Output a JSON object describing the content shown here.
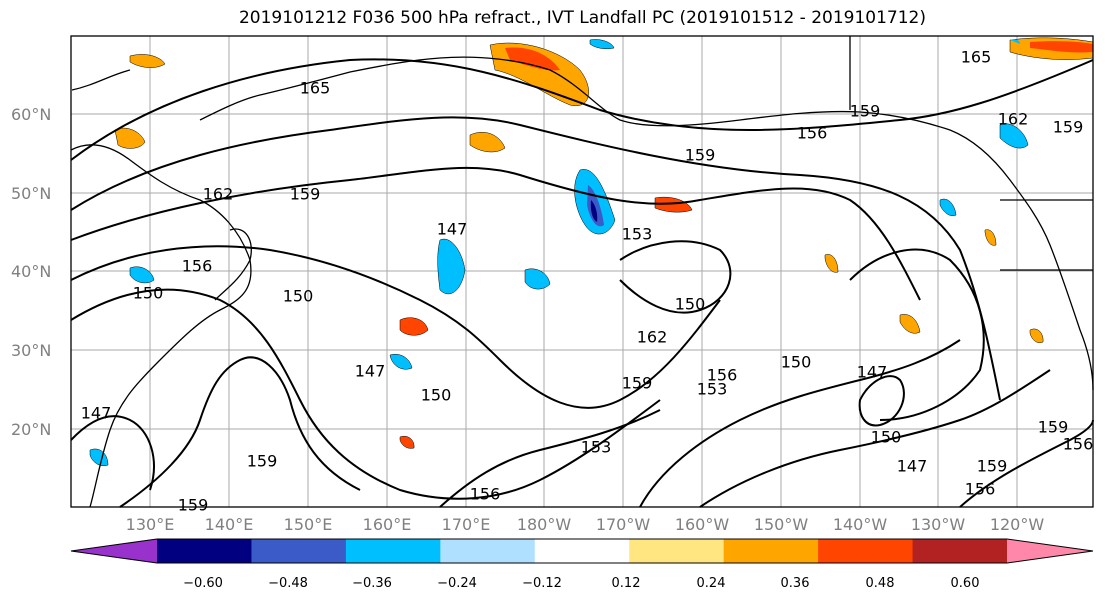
{
  "title": "2019101212 F036 500 hPa refract., IVT Landfall PC (2019101512 - 2019101712)",
  "lat_labels": [
    "60°N",
    "50°N",
    "40°N",
    "30°N",
    "20°N"
  ],
  "lon_labels": [
    "130°E",
    "140°E",
    "150°E",
    "160°E",
    "170°E",
    "180°W",
    "170°W",
    "160°W",
    "150°W",
    "140°W",
    "130°W",
    "120°W"
  ],
  "colorbar": {
    "ticks": [
      "−0.60",
      "−0.48",
      "−0.36",
      "−0.24",
      "−0.12",
      "0.12",
      "0.24",
      "0.36",
      "0.48",
      "0.60"
    ],
    "colors": [
      "#9932cc",
      "#000080",
      "#3a5bc8",
      "#00bfff",
      "#b0e0ff",
      "#ffffff",
      "#ffe680",
      "#ffa500",
      "#ff4500",
      "#b22222",
      "#ff88aa"
    ]
  },
  "contour_labels": [
    {
      "text": "165"
    },
    {
      "text": "162"
    },
    {
      "text": "159"
    },
    {
      "text": "156"
    },
    {
      "text": "150"
    },
    {
      "text": "147"
    },
    {
      "text": "153"
    },
    {
      "text": "159"
    },
    {
      "text": "156"
    },
    {
      "text": "150"
    },
    {
      "text": "147"
    },
    {
      "text": "150"
    },
    {
      "text": "153"
    },
    {
      "text": "156"
    },
    {
      "text": "159"
    },
    {
      "text": "162"
    },
    {
      "text": "150"
    },
    {
      "text": "165"
    },
    {
      "text": "159"
    },
    {
      "text": "162"
    },
    {
      "text": "156"
    },
    {
      "text": "150"
    },
    {
      "text": "147"
    },
    {
      "text": "150"
    },
    {
      "text": "147"
    },
    {
      "text": "159"
    },
    {
      "text": "156"
    },
    {
      "text": "159"
    },
    {
      "text": "156"
    },
    {
      "text": "159"
    },
    {
      "text": "147"
    },
    {
      "text": "159"
    },
    {
      "text": "153"
    },
    {
      "text": "159"
    }
  ]
}
